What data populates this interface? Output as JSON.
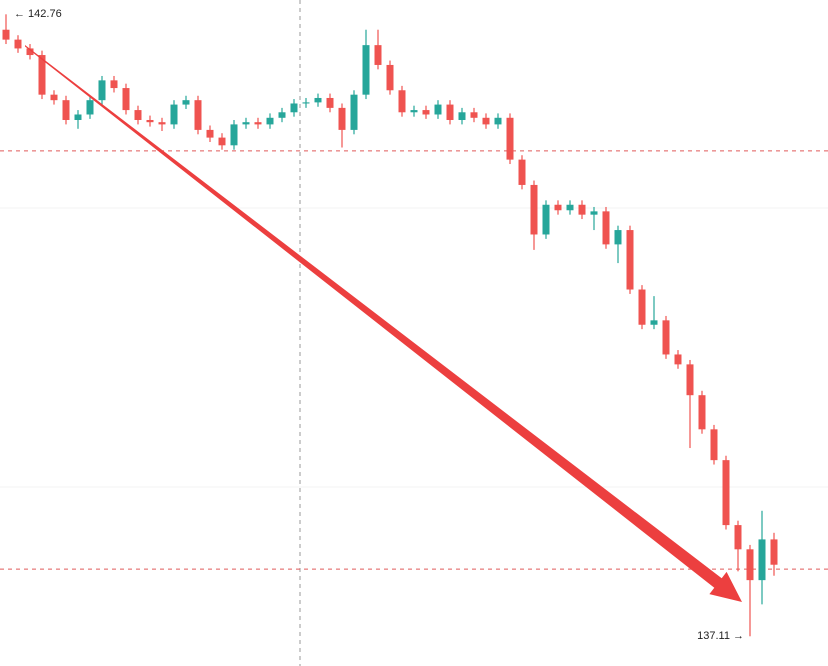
{
  "chart_data": {
    "type": "candlestick",
    "up_color": "#26a69a",
    "down_color": "#ef5350",
    "ylim": [
      136.84,
      142.89
    ],
    "reference_lines": [
      141.52,
      137.72
    ],
    "reference_color": "#e05a5a",
    "high_label": "← 142.76",
    "low_label": "137.11 →",
    "open": [
      142.62,
      142.53,
      142.45,
      142.39,
      142.03,
      141.98,
      141.8,
      141.85,
      141.98,
      142.16,
      142.09,
      141.89,
      141.8,
      141.78,
      141.76,
      141.94,
      141.98,
      141.71,
      141.64,
      141.57,
      141.76,
      141.78,
      141.76,
      141.82,
      141.87,
      141.95,
      141.96,
      142.0,
      141.91,
      141.71,
      142.03,
      142.48,
      142.3,
      142.07,
      141.87,
      141.89,
      141.85,
      141.94,
      141.8,
      141.87,
      141.82,
      141.76,
      141.82,
      141.44,
      141.21,
      140.76,
      141.03,
      140.98,
      141.03,
      140.94,
      140.97,
      140.67,
      140.8,
      140.26,
      139.94,
      139.98,
      139.67,
      139.58,
      139.3,
      138.99,
      138.71,
      138.12,
      137.9,
      137.62,
      137.99
    ],
    "high": [
      142.76,
      142.57,
      142.49,
      142.43,
      142.07,
      142.02,
      141.89,
      142.02,
      142.2,
      142.2,
      142.13,
      141.93,
      141.84,
      141.82,
      141.98,
      142.02,
      142.02,
      141.75,
      141.68,
      141.8,
      141.82,
      141.82,
      141.86,
      141.91,
      141.99,
      142.0,
      142.04,
      142.04,
      141.95,
      142.07,
      142.62,
      142.62,
      142.34,
      142.11,
      141.93,
      141.93,
      141.98,
      141.98,
      141.91,
      141.91,
      141.86,
      141.86,
      141.86,
      141.48,
      141.25,
      141.07,
      141.07,
      141.07,
      141.07,
      141.01,
      141.01,
      140.84,
      140.84,
      140.3,
      140.2,
      140.02,
      139.71,
      139.62,
      139.34,
      139.03,
      138.75,
      138.16,
      137.94,
      138.25,
      138.05
    ],
    "low": [
      142.49,
      142.41,
      142.35,
      141.99,
      141.94,
      141.76,
      141.72,
      141.81,
      141.94,
      142.05,
      141.85,
      141.76,
      141.74,
      141.7,
      141.72,
      141.9,
      141.67,
      141.6,
      141.53,
      141.53,
      141.72,
      141.72,
      141.72,
      141.78,
      141.83,
      141.91,
      141.92,
      141.87,
      141.55,
      141.67,
      141.99,
      142.26,
      142.03,
      141.83,
      141.83,
      141.81,
      141.81,
      141.76,
      141.76,
      141.78,
      141.72,
      141.72,
      141.4,
      141.17,
      140.62,
      140.72,
      140.94,
      140.94,
      140.9,
      140.8,
      140.63,
      140.5,
      140.22,
      139.9,
      139.9,
      139.63,
      139.54,
      138.82,
      138.95,
      138.67,
      138.08,
      137.7,
      137.11,
      137.4,
      137.66
    ],
    "close": [
      142.53,
      142.45,
      142.39,
      142.03,
      141.98,
      141.8,
      141.85,
      141.98,
      142.16,
      142.09,
      141.89,
      141.8,
      141.78,
      141.76,
      141.94,
      141.98,
      141.71,
      141.64,
      141.57,
      141.76,
      141.78,
      141.76,
      141.82,
      141.87,
      141.95,
      141.96,
      142.0,
      141.91,
      141.71,
      142.03,
      142.48,
      142.3,
      142.07,
      141.87,
      141.89,
      141.85,
      141.94,
      141.8,
      141.87,
      141.82,
      141.76,
      141.82,
      141.44,
      141.21,
      140.76,
      141.03,
      140.98,
      141.03,
      140.94,
      140.97,
      140.67,
      140.8,
      140.26,
      139.94,
      139.98,
      139.67,
      139.58,
      139.3,
      138.99,
      138.71,
      138.12,
      137.9,
      137.62,
      137.99,
      137.76
    ]
  }
}
